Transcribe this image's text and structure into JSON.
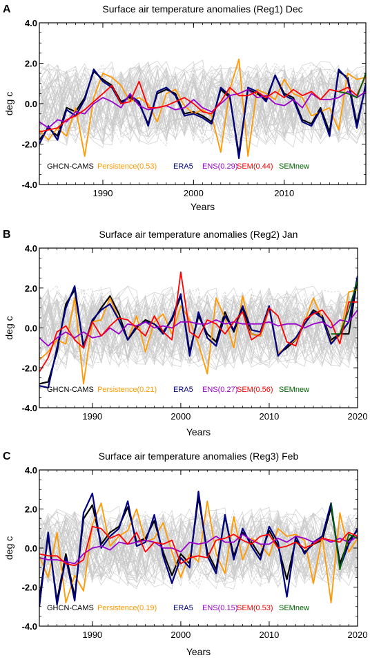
{
  "chart_data": [
    {
      "panel": "A",
      "type": "line",
      "title": "Surface air temperature anomalies (Reg1) Dec",
      "xlabel": "Years",
      "ylabel": "deg c",
      "xlim": [
        1983,
        2019
      ],
      "ylim": [
        -4,
        4
      ],
      "xticks": [
        1990,
        2000,
        2010
      ],
      "yticks": [
        "4.0",
        "2.0",
        "0.0",
        "-2.0",
        "-4.0"
      ],
      "grid": false,
      "x": [
        1983,
        1984,
        1985,
        1986,
        1987,
        1988,
        1989,
        1990,
        1991,
        1992,
        1993,
        1994,
        1995,
        1996,
        1997,
        1998,
        1999,
        2000,
        2001,
        2002,
        2003,
        2004,
        2005,
        2006,
        2007,
        2008,
        2009,
        2010,
        2011,
        2012,
        2013,
        2014,
        2015,
        2016,
        2017,
        2018,
        2019
      ],
      "legend": [
        {
          "label": "GHCN-CAMS",
          "color": "#000000"
        },
        {
          "label": "Persistence(0.53)",
          "color": "#ff9900"
        },
        {
          "label": "ERA5",
          "color": "#000080"
        },
        {
          "label": "ENS(0.29)",
          "color": "#9900cc"
        },
        {
          "label": "SEM(0.44)",
          "color": "#ff0000"
        },
        {
          "label": "SEMnew",
          "color": "#006400"
        }
      ],
      "series": [
        {
          "name": "GHCN-CAMS",
          "values": [
            -1.8,
            -1.2,
            -1.6,
            -0.2,
            -0.4,
            0.3,
            1.6,
            1.2,
            0.9,
            0.1,
            0.3,
            0.0,
            -1.0,
            0.5,
            0.7,
            0.5,
            -0.5,
            -0.4,
            -0.6,
            -0.9,
            0.7,
            0.3,
            -2.5,
            0.7,
            0.5,
            0.2,
            1.4,
            0.5,
            0.3,
            -0.8,
            -1.0,
            -0.2,
            -1.4,
            1.6,
            1.3,
            -1.0,
            0.9
          ]
        },
        {
          "name": "Persistence(0.53)",
          "values": [
            -1.3,
            -1.8,
            -1.2,
            -1.6,
            -0.2,
            -2.6,
            0.3,
            1.5,
            1.3,
            0.9,
            0.1,
            0.3,
            0.0,
            -0.9,
            0.5,
            0.7,
            -0.1,
            -0.5,
            -0.3,
            -0.6,
            -2.4,
            0.7,
            2.2,
            -2.6,
            0.7,
            0.5,
            0.2,
            1.2,
            0.5,
            0.3,
            -0.6,
            -0.4,
            -0.2,
            -1.3,
            1.5,
            1.2,
            1.3
          ]
        },
        {
          "name": "ERA5",
          "values": [
            -2.0,
            -1.1,
            -1.8,
            -0.3,
            -0.6,
            0.2,
            1.7,
            1.1,
            0.8,
            0.0,
            0.4,
            0.1,
            -1.1,
            0.6,
            0.8,
            0.4,
            -0.6,
            -0.5,
            -0.7,
            -1.0,
            0.8,
            0.4,
            -2.7,
            0.8,
            0.6,
            0.1,
            1.4,
            0.4,
            0.2,
            -0.9,
            -1.1,
            -0.3,
            -1.6,
            1.7,
            1.2,
            -1.2,
            1.0
          ]
        },
        {
          "name": "ENS(0.29)",
          "values": [
            -0.9,
            -1.2,
            -0.8,
            -0.9,
            -0.4,
            -0.5,
            0.0,
            0.3,
            0.1,
            -0.2,
            0.5,
            -0.1,
            -0.3,
            -0.2,
            -0.1,
            -0.3,
            -0.2,
            0.2,
            -0.2,
            -0.4,
            0.0,
            0.4,
            0.5,
            0.7,
            0.3,
            0.4,
            0.0,
            -0.1,
            0.2,
            -0.2,
            0.5,
            0.2,
            0.2,
            0.3,
            0.6,
            0.3,
            0.6
          ]
        },
        {
          "name": "SEM(0.44)",
          "values": [
            -1.4,
            -1.3,
            -1.2,
            -0.8,
            -0.6,
            -0.3,
            0.1,
            0.5,
            0.9,
            0.0,
            0.1,
            1.1,
            -0.2,
            -0.2,
            -0.1,
            0.1,
            0.3,
            0.0,
            -0.4,
            -0.5,
            0.1,
            0.8,
            0.4,
            0.4,
            0.6,
            0.3,
            0.6,
            0.3,
            0.7,
            0.4,
            0.6,
            0.2,
            0.7,
            0.6,
            0.8,
            0.4,
            1.4
          ]
        },
        {
          "name": "SEMnew",
          "values": [
            null,
            null,
            null,
            null,
            null,
            null,
            null,
            null,
            null,
            null,
            null,
            null,
            null,
            null,
            null,
            null,
            null,
            null,
            null,
            null,
            null,
            null,
            null,
            null,
            null,
            null,
            null,
            null,
            null,
            null,
            null,
            null,
            null,
            0.6,
            0.5,
            0.3,
            1.5
          ]
        }
      ]
    },
    {
      "panel": "B",
      "type": "line",
      "title": "Surface air temperature anomalies (Reg2) Jan",
      "xlabel": "Years",
      "ylabel": "deg c",
      "xlim": [
        1984,
        2020
      ],
      "ylim": [
        -4,
        4
      ],
      "xticks": [
        1990,
        2000,
        2010,
        2020
      ],
      "yticks": [
        "4.0",
        "2.0",
        "0.0",
        "-2.0",
        "-4.0"
      ],
      "grid": false,
      "x": [
        1984,
        1985,
        1986,
        1987,
        1988,
        1989,
        1990,
        1991,
        1992,
        1993,
        1994,
        1995,
        1996,
        1997,
        1998,
        1999,
        2000,
        2001,
        2002,
        2003,
        2004,
        2005,
        2006,
        2007,
        2008,
        2009,
        2010,
        2011,
        2012,
        2013,
        2014,
        2015,
        2016,
        2017,
        2018,
        2019,
        2020
      ],
      "legend": [
        {
          "label": "GHCN-CAMS",
          "color": "#000000"
        },
        {
          "label": "Persistence(0.21)",
          "color": "#ff9900"
        },
        {
          "label": "ERA5",
          "color": "#000080"
        },
        {
          "label": "ENS(0.27)",
          "color": "#9900cc"
        },
        {
          "label": "SEM(0.56)",
          "color": "#ff0000"
        },
        {
          "label": "SEMnew",
          "color": "#006400"
        }
      ],
      "series": [
        {
          "name": "GHCN-CAMS",
          "values": [
            -2.8,
            -2.7,
            -1.2,
            1.2,
            1.9,
            -0.9,
            0.3,
            1.0,
            1.6,
            0.7,
            -0.6,
            0.0,
            0.4,
            0.2,
            -0.2,
            0.4,
            1.6,
            -1.2,
            0.6,
            -0.3,
            -0.7,
            0.8,
            -0.2,
            1.0,
            -0.3,
            -0.4,
            1.0,
            -1.3,
            -1.0,
            -0.6,
            0.2,
            0.9,
            0.6,
            -0.6,
            -0.3,
            -0.3,
            2.5
          ]
        },
        {
          "name": "Persistence(0.21)",
          "values": [
            -1.6,
            -1.2,
            -0.6,
            -0.8,
            1.5,
            -2.8,
            0.3,
            0.4,
            1.5,
            0.4,
            -0.6,
            0.6,
            -1.2,
            0.3,
            0.7,
            -0.3,
            1.1,
            0.4,
            -0.8,
            -2.3,
            1.5,
            0.5,
            -1.0,
            1.6,
            -0.3,
            -0.4,
            1.0,
            -1.3,
            -0.9,
            -0.6,
            0.3,
            1.5,
            0.5,
            -0.7,
            -0.4,
            1.8,
            1.9
          ]
        },
        {
          "name": "ERA5",
          "values": [
            -2.9,
            -3.0,
            -1.0,
            1.0,
            2.1,
            -1.0,
            0.4,
            0.9,
            1.2,
            0.4,
            -0.6,
            0.1,
            0.3,
            0.2,
            -0.3,
            0.5,
            1.7,
            -1.4,
            0.8,
            -0.5,
            -0.9,
            0.6,
            -0.1,
            1.1,
            -0.1,
            -0.2,
            1.1,
            -1.4,
            -0.9,
            -0.5,
            0.2,
            0.8,
            0.5,
            -0.8,
            -0.3,
            0.3,
            2.6
          ]
        },
        {
          "name": "ENS(0.27)",
          "values": [
            -0.5,
            -0.9,
            -0.5,
            -0.2,
            -0.5,
            -0.2,
            -0.5,
            -0.4,
            0.0,
            -0.3,
            0.2,
            0.1,
            0.3,
            0.0,
            0.1,
            0.0,
            0.3,
            0.3,
            0.2,
            0.2,
            0.4,
            0.2,
            0.3,
            0.2,
            0.2,
            0.2,
            0.3,
            0.1,
            0.2,
            0.2,
            0.0,
            0.2,
            0.3,
            0.0,
            0.4,
            0.3,
            0.9
          ]
        },
        {
          "name": "SEM(0.56)",
          "values": [
            -2.2,
            -1.5,
            -0.2,
            0.1,
            -0.6,
            -1.0,
            0.3,
            -0.4,
            0.1,
            0.5,
            0.4,
            0.0,
            -0.4,
            0.6,
            -0.2,
            -0.6,
            2.8,
            -0.2,
            -0.5,
            0.4,
            0.2,
            -0.3,
            0.3,
            0.8,
            -0.6,
            -0.3,
            1.0,
            0.6,
            -0.7,
            -0.9,
            0.4,
            0.7,
            0.9,
            0.3,
            -0.8,
            1.3,
            1.3
          ]
        },
        {
          "name": "SEMnew",
          "values": [
            null,
            null,
            null,
            null,
            null,
            null,
            null,
            null,
            null,
            null,
            null,
            null,
            null,
            null,
            null,
            null,
            null,
            null,
            null,
            null,
            null,
            null,
            null,
            null,
            null,
            null,
            null,
            null,
            null,
            null,
            null,
            null,
            null,
            -0.3,
            -0.3,
            0.9,
            2.4
          ]
        }
      ]
    },
    {
      "panel": "C",
      "type": "line",
      "title": "Surface air temperature anomalies (Reg3) Feb",
      "xlabel": "Years",
      "ylabel": "deg c",
      "xlim": [
        1984,
        2020
      ],
      "ylim": [
        -4,
        4
      ],
      "xticks": [
        1990,
        2000,
        2010,
        2020
      ],
      "yticks": [
        "4.0",
        "2.0",
        "0.0",
        "-2.0",
        "-4.0"
      ],
      "grid": false,
      "x": [
        1984,
        1985,
        1986,
        1987,
        1988,
        1989,
        1990,
        1991,
        1992,
        1993,
        1994,
        1995,
        1996,
        1997,
        1998,
        1999,
        2000,
        2001,
        2002,
        2003,
        2004,
        2005,
        2006,
        2007,
        2008,
        2009,
        2010,
        2011,
        2012,
        2013,
        2014,
        2015,
        2016,
        2017,
        2018,
        2019,
        2020
      ],
      "legend": [
        {
          "label": "GHCN-CAMS",
          "color": "#000000"
        },
        {
          "label": "Persistence(0.19)",
          "color": "#ff9900"
        },
        {
          "label": "ERA5",
          "color": "#000080"
        },
        {
          "label": "ENS(0.15)",
          "color": "#9900cc"
        },
        {
          "label": "SEM(0.53)",
          "color": "#ff0000"
        },
        {
          "label": "SEMnew",
          "color": "#006400"
        }
      ],
      "series": [
        {
          "name": "GHCN-CAMS",
          "values": [
            -2.6,
            0.6,
            -2.7,
            -0.3,
            -2.5,
            1.5,
            2.2,
            0.2,
            0.8,
            1.1,
            2.1,
            0.3,
            0.5,
            1.4,
            -0.2,
            -1.4,
            -0.3,
            -0.8,
            2.6,
            -0.2,
            -1.1,
            1.6,
            -0.4,
            0.8,
            0.3,
            -0.4,
            0.9,
            0.1,
            -1.6,
            0.4,
            -0.2,
            0.2,
            0.4,
            2.1,
            -0.8,
            0.4,
            0.9
          ]
        },
        {
          "name": "Persistence(0.19)",
          "values": [
            -0.4,
            -1.5,
            0.8,
            -2.8,
            -1.4,
            -2.2,
            1.2,
            2.3,
            0.1,
            0.6,
            0.9,
            2.0,
            0.3,
            0.5,
            1.3,
            -0.2,
            -1.5,
            -0.3,
            -0.7,
            2.4,
            -0.3,
            -1.3,
            1.6,
            -0.6,
            0.5,
            0.2,
            -0.4,
            1.0,
            0.6,
            0.7,
            0.4,
            -1.8,
            0.6,
            -2.8,
            1.8,
            -0.2,
            0.5
          ]
        },
        {
          "name": "ERA5",
          "values": [
            -3.0,
            0.8,
            -2.9,
            -0.5,
            -2.7,
            1.8,
            2.8,
            0.0,
            0.6,
            1.0,
            2.4,
            0.1,
            0.3,
            1.7,
            -0.4,
            -1.8,
            -0.5,
            -1.0,
            2.9,
            -0.4,
            -1.3,
            1.7,
            -0.6,
            1.0,
            0.1,
            -0.6,
            1.1,
            0.3,
            -2.5,
            0.6,
            -0.3,
            0.3,
            0.6,
            2.3,
            -1.0,
            0.2,
            1.0
          ]
        },
        {
          "name": "ENS(0.15)",
          "values": [
            -0.5,
            -0.6,
            -0.6,
            -0.7,
            -0.8,
            -0.3,
            0.0,
            0.1,
            -0.1,
            0.3,
            0.2,
            0.3,
            0.4,
            0.3,
            0.0,
            0.0,
            -0.2,
            0.3,
            0.2,
            0.3,
            0.6,
            0.3,
            0.3,
            0.7,
            0.4,
            0.2,
            0.2,
            0.5,
            0.3,
            0.6,
            0.5,
            0.3,
            0.5,
            0.3,
            0.5,
            0.3,
            0.6
          ]
        },
        {
          "name": "SEM(0.53)",
          "values": [
            -0.3,
            -0.4,
            -0.4,
            -0.8,
            -0.9,
            -0.6,
            1.1,
            1.0,
            0.5,
            0.7,
            0.2,
            0.8,
            -0.2,
            0.3,
            0.2,
            0.4,
            -0.8,
            -0.5,
            -0.4,
            -0.5,
            0.4,
            0.5,
            0.7,
            0.4,
            0.2,
            0.6,
            0.7,
            0.0,
            0.1,
            0.3,
            0.0,
            0.2,
            0.5,
            0.4,
            0.3,
            0.8,
            0.6
          ]
        },
        {
          "name": "SEMnew",
          "values": [
            null,
            null,
            null,
            null,
            null,
            null,
            null,
            null,
            null,
            null,
            null,
            null,
            null,
            null,
            null,
            null,
            null,
            null,
            null,
            null,
            null,
            null,
            null,
            null,
            null,
            null,
            null,
            null,
            null,
            null,
            null,
            null,
            null,
            2.3,
            -1.1,
            0.7,
            0.5
          ]
        }
      ]
    }
  ],
  "panel_labels": [
    "A",
    "B",
    "C"
  ]
}
